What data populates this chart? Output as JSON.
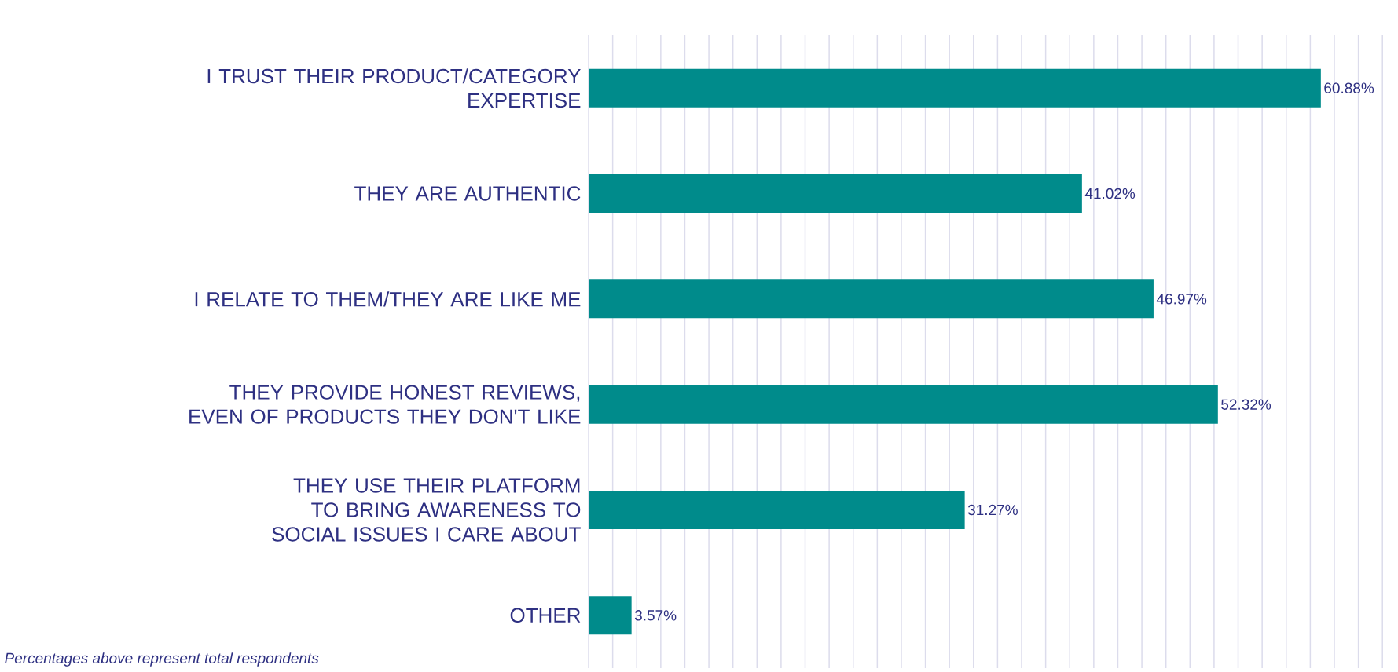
{
  "chart_data": {
    "type": "bar",
    "orientation": "horizontal",
    "categories": [
      "I TRUST THEIR PRODUCT/CATEGORY EXPERTISE",
      "THEY ARE AUTHENTIC",
      "I RELATE TO THEM/THEY ARE LIKE ME",
      "THEY PROVIDE HONEST REVIEWS, EVEN OF PRODUCTS THEY DON'T LIKE",
      "THEY USE THEIR PLATFORM TO BRING AWARENESS TO SOCIAL ISSUES I CARE ABOUT",
      "OTHER"
    ],
    "values": [
      60.88,
      41.02,
      46.97,
      52.32,
      31.27,
      3.57
    ],
    "value_labels": [
      "60.88%",
      "41.02%",
      "46.97%",
      "52.32%",
      "31.27%",
      "3.57%"
    ],
    "color": "#008b8b",
    "grid": "x",
    "tick_labels": "y",
    "annotations": [
      "Percentages above represent total respondents"
    ]
  }
}
